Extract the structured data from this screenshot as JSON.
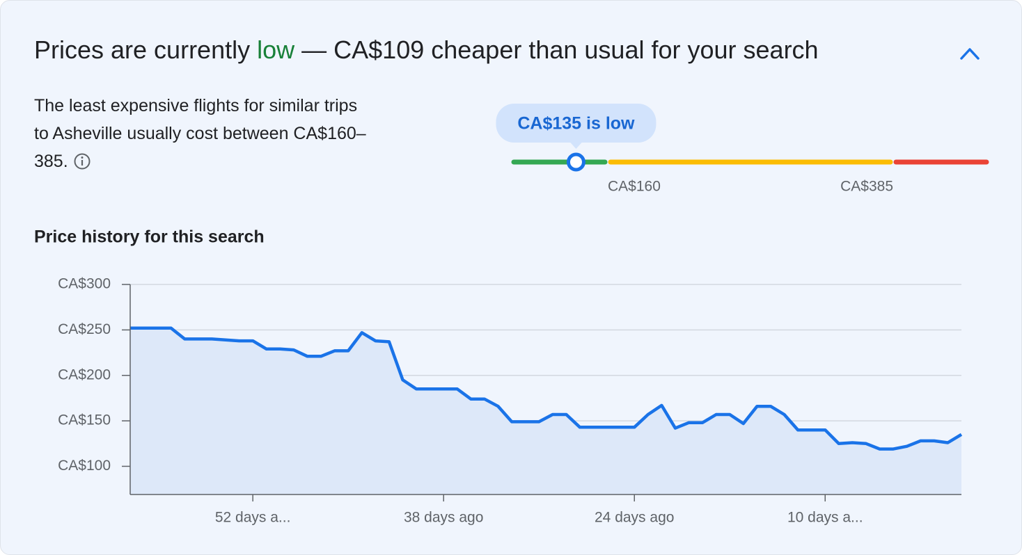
{
  "header": {
    "title_start": "Prices are currently ",
    "title_status": "low",
    "title_end": " — CA$109 cheaper than usual for your search"
  },
  "description": "The least expensive flights for similar trips to Asheville usually cost between CA$160–385.",
  "price_range": {
    "current": 135,
    "current_label": "CA$135 is low",
    "low": {
      "value": 160,
      "label": "CA$160"
    },
    "high": {
      "value": 385,
      "label": "CA$385"
    }
  },
  "chart_data": {
    "type": "line",
    "title": "Price history for this search",
    "color": "#1a73e8",
    "grid": true,
    "x": [
      61,
      60,
      59,
      58,
      57,
      56,
      55,
      54,
      53,
      52,
      51,
      50,
      49,
      48,
      47,
      46,
      45,
      44,
      43,
      42,
      41,
      40,
      39,
      38,
      37,
      36,
      35,
      34,
      33,
      32,
      31,
      30,
      29,
      28,
      27,
      26,
      25,
      24,
      23,
      22,
      21,
      20,
      19,
      18,
      17,
      16,
      15,
      14,
      13,
      12,
      11,
      10,
      9,
      8,
      7,
      6,
      5,
      4,
      3,
      2,
      1,
      0
    ],
    "values": [
      252,
      252,
      252,
      252,
      240,
      240,
      240,
      239,
      238,
      238,
      229,
      229,
      228,
      221,
      221,
      227,
      227,
      247,
      238,
      237,
      195,
      185,
      185,
      185,
      185,
      174,
      174,
      166,
      149,
      149,
      149,
      157,
      157,
      143,
      143,
      143,
      143,
      143,
      157,
      167,
      142,
      148,
      148,
      157,
      157,
      147,
      166,
      166,
      157,
      140,
      140,
      140,
      125,
      126,
      125,
      119,
      119,
      122,
      128,
      128,
      126,
      135
    ],
    "xlim": [
      61,
      0
    ],
    "ylim": [
      69,
      300
    ],
    "xticks": [
      {
        "value": 52,
        "label": "52 days a..."
      },
      {
        "value": 38,
        "label": "38 days ago"
      },
      {
        "value": 24,
        "label": "24 days ago"
      },
      {
        "value": 10,
        "label": "10 days a..."
      }
    ],
    "yticks": [
      {
        "value": 100,
        "label": "CA$100"
      },
      {
        "value": 150,
        "label": "CA$150"
      },
      {
        "value": 200,
        "label": "CA$200"
      },
      {
        "value": 250,
        "label": "CA$250"
      },
      {
        "value": 300,
        "label": "CA$300"
      }
    ]
  }
}
